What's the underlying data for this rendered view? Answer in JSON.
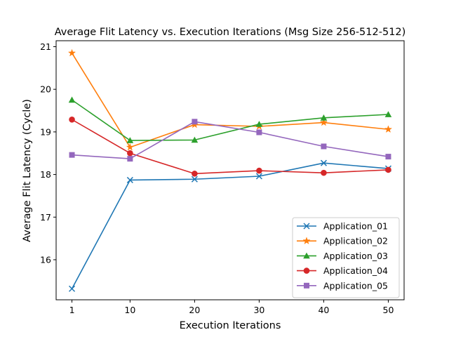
{
  "chart_data": {
    "type": "line",
    "title": "Average Flit Latency vs. Execution Iterations (Msg Size 256-512-512)",
    "xlabel": "Execution Iterations",
    "ylabel": "Average Flit Latency (Cycle)",
    "x": [
      1,
      10,
      20,
      30,
      40,
      50
    ],
    "xticks": [
      "1",
      "10",
      "20",
      "30",
      "40",
      "50"
    ],
    "yticks": [
      16,
      17,
      18,
      19,
      20,
      21
    ],
    "ytick_labels": [
      "16",
      "17",
      "18",
      "19",
      "20",
      "21"
    ],
    "xlim": [
      -1.45,
      52.45
    ],
    "ylim": [
      15.06,
      21.14
    ],
    "grid": false,
    "legend_position": "lower right",
    "series": [
      {
        "name": "Application_01",
        "color": "#1f77b4",
        "marker": "x",
        "values": [
          15.32,
          17.87,
          17.89,
          17.96,
          18.27,
          18.14
        ]
      },
      {
        "name": "Application_02",
        "color": "#ff7f0e",
        "marker": "star",
        "values": [
          20.85,
          18.64,
          19.17,
          19.13,
          19.22,
          19.06
        ]
      },
      {
        "name": "Application_03",
        "color": "#2ca02c",
        "marker": "triangle",
        "values": [
          19.75,
          18.8,
          18.81,
          19.18,
          19.33,
          19.41
        ]
      },
      {
        "name": "Application_04",
        "color": "#d62728",
        "marker": "circle",
        "values": [
          19.29,
          18.5,
          18.02,
          18.09,
          18.04,
          18.11
        ]
      },
      {
        "name": "Application_05",
        "color": "#9467bd",
        "marker": "square",
        "values": [
          18.46,
          18.37,
          19.24,
          18.99,
          18.66,
          18.42
        ]
      }
    ]
  }
}
